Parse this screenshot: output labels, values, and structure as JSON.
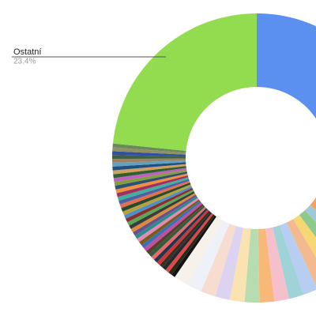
{
  "chart_data": {
    "type": "donut",
    "categories": [
      null,
      null,
      null,
      null,
      null,
      null,
      null,
      null,
      null,
      null,
      null,
      null,
      null,
      null,
      null,
      null,
      null,
      null,
      null,
      null,
      null,
      null,
      null,
      null,
      null,
      null,
      null,
      null,
      null,
      null,
      null,
      null,
      null,
      null,
      null,
      null,
      null,
      null,
      null,
      null,
      null,
      null,
      null,
      null,
      null,
      null,
      null,
      null,
      null,
      null,
      null,
      null,
      null,
      null,
      null,
      null,
      null,
      "Ostatní"
    ],
    "values": [
      33.2,
      1.65,
      1.65,
      1.65,
      1.65,
      1.65,
      1.65,
      1.65,
      1.65,
      1.65,
      1.65,
      1.65,
      1.65,
      1.65,
      1.65,
      1.65,
      1.65,
      0.425,
      0.425,
      0.425,
      0.425,
      0.425,
      0.425,
      0.425,
      0.425,
      0.425,
      0.425,
      0.425,
      0.425,
      0.425,
      0.425,
      0.425,
      0.425,
      0.425,
      0.425,
      0.425,
      0.425,
      0.425,
      0.425,
      0.425,
      0.425,
      0.425,
      0.425,
      0.425,
      0.425,
      0.425,
      0.425,
      0.425,
      0.425,
      0.425,
      0.425,
      0.425,
      0.425,
      0.425,
      0.425,
      0.425,
      0.425,
      23.4
    ],
    "value_labels": [
      null,
      null,
      null,
      null,
      null,
      null,
      null,
      null,
      null,
      null,
      null,
      null,
      null,
      null,
      null,
      null,
      null,
      null,
      null,
      null,
      null,
      null,
      null,
      null,
      null,
      null,
      null,
      null,
      null,
      null,
      null,
      null,
      null,
      null,
      null,
      null,
      null,
      null,
      null,
      null,
      null,
      null,
      null,
      null,
      null,
      null,
      null,
      null,
      null,
      null,
      null,
      null,
      null,
      null,
      null,
      null,
      null,
      "23.4%"
    ],
    "colors": [
      "#5b8ff0",
      "#9cb8a0",
      "#f4a261",
      "#9fc9d8",
      "#8fc98c",
      "#f7d774",
      "#f3b98f",
      "#b8cdf2",
      "#9fd3d8",
      "#f5c0cc",
      "#f8b878",
      "#b7dcb0",
      "#fae3b0",
      "#dcd3f0",
      "#f7ddd0",
      "#eef2f8",
      "#f6f1ea",
      "#141414",
      "#2a2a1a",
      "#e04848",
      "#222a33",
      "#3a2f20",
      "#c83a3a",
      "#1f3550",
      "#e86a6a",
      "#2e5e3e",
      "#5a3d2b",
      "#c44e9b",
      "#3b6fb6",
      "#7a5c1e",
      "#e38bb4",
      "#2c8c8c",
      "#6b4f8f",
      "#d98c3a",
      "#3c3c3c",
      "#58a858",
      "#8c2c2c",
      "#4a90c8",
      "#b8a040",
      "#2a4a2a",
      "#e07050",
      "#5060a0",
      "#40b0a0",
      "#a03060",
      "#f09040",
      "#305070",
      "#80a040",
      "#c060c0",
      "#306030",
      "#d0a060",
      "#205080",
      "#60a0c0",
      "#a08060",
      "#406040",
      "#3050a0",
      "#909060",
      "#6a8a5a",
      "#93dc4f"
    ]
  }
}
